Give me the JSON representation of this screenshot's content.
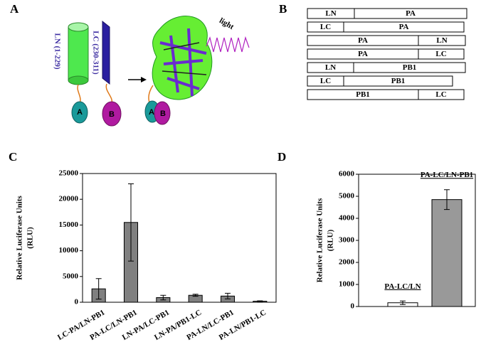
{
  "panel_labels": [
    "A",
    "B",
    "C",
    "D"
  ],
  "diagram": {
    "ln": "LN (1-229)",
    "lc": "LC (230-311)",
    "light": "light",
    "domain_a": "A",
    "domain_b": "B"
  },
  "constructs": [
    [
      "LN",
      "PA"
    ],
    [
      "LC",
      "PA"
    ],
    [
      "PA",
      "LN"
    ],
    [
      "PA",
      "LC"
    ],
    [
      "LN",
      "PB1"
    ],
    [
      "LC",
      "PB1"
    ],
    [
      "PB1",
      "LC"
    ]
  ],
  "chart_data": [
    {
      "type": "bar",
      "ylabel": [
        "Relative Luciferase Units",
        "(RLU)"
      ],
      "categories": [
        "LC-PA/LN-PB1",
        "PA-LC/LN-PB1",
        "LN-PA/LC-PB1",
        "LN-PA/PB1-LC",
        "PA-LN/LC-PB1",
        "PA-LN/PB1-LC"
      ],
      "values": [
        2600,
        15500,
        900,
        1350,
        1200,
        200
      ],
      "errors": [
        2000,
        7500,
        450,
        200,
        550,
        80
      ],
      "color": "#808080",
      "ylim": [
        0,
        25000
      ],
      "yticks": [
        0,
        5000,
        10000,
        15000,
        20000,
        25000
      ]
    },
    {
      "type": "bar",
      "ylabel": [
        "Relative Luciferase Units",
        "(RLU)"
      ],
      "categories": [
        "PA-LC/LN",
        "PA-LC/LN-PB1"
      ],
      "values": [
        170,
        4850
      ],
      "errors": [
        80,
        450
      ],
      "colors": [
        "#ffffff",
        "#999999"
      ],
      "ylim": [
        0,
        6000
      ],
      "yticks": [
        0,
        1000,
        2000,
        3000,
        4000,
        5000,
        6000
      ]
    }
  ]
}
